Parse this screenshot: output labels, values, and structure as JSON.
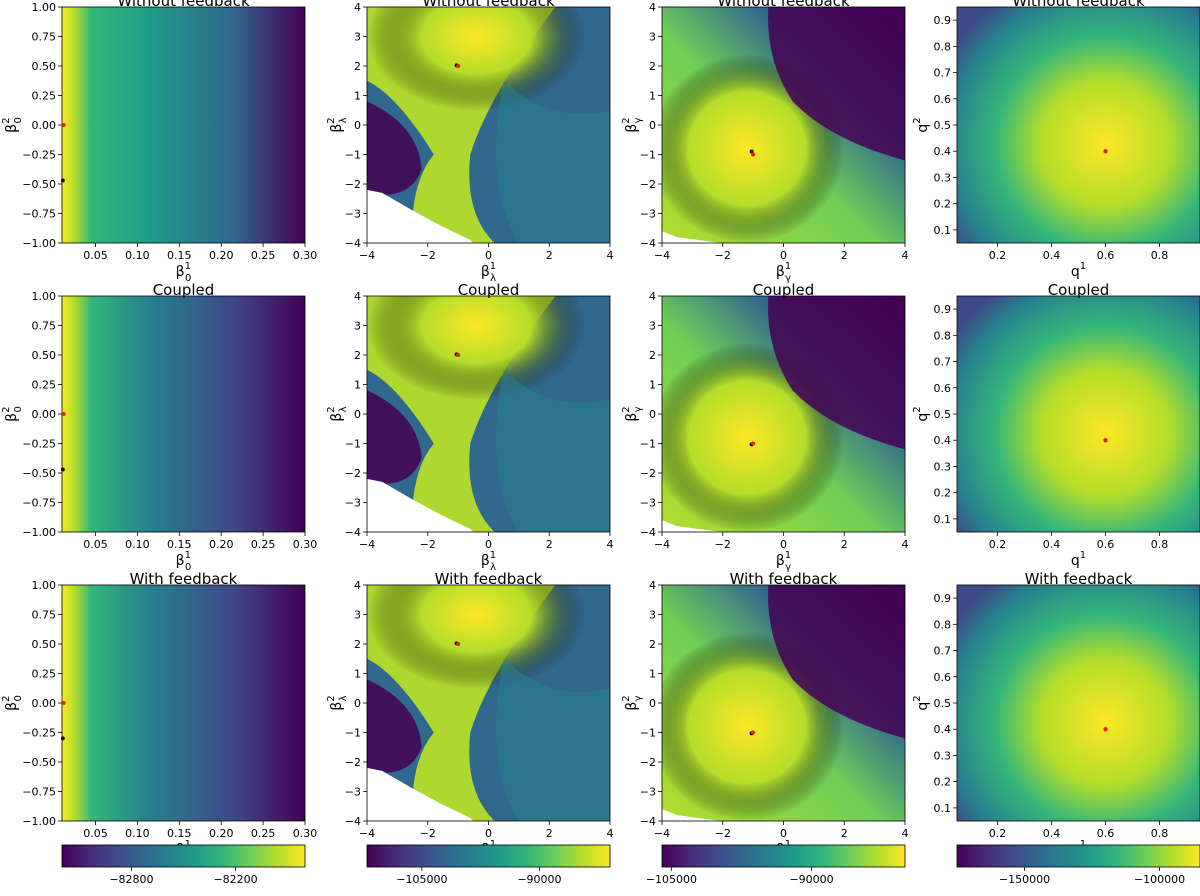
{
  "panel_titles": [
    [
      "Without feedback",
      "Without feedback",
      "Without feedback",
      "Without feedback"
    ],
    [
      "Coupled",
      "Coupled",
      "Coupled",
      "Coupled"
    ],
    [
      "With feedback",
      "With feedback",
      "With feedback",
      "With feedback"
    ]
  ],
  "axis_labels": [
    {
      "x_base": "β",
      "x_sub": "0",
      "x_sup": "1",
      "y_base": "β",
      "y_sub": "0",
      "y_sup": "2"
    },
    {
      "x_base": "β",
      "x_sub": "λ",
      "x_sup": "1",
      "y_base": "β",
      "y_sub": "λ",
      "y_sup": "2"
    },
    {
      "x_base": "β",
      "x_sub": "γ",
      "x_sup": "1",
      "y_base": "β",
      "y_sub": "γ",
      "y_sup": "2"
    },
    {
      "x_base": "q",
      "x_sub": "",
      "x_sup": "1",
      "y_base": "q",
      "y_sub": "",
      "y_sup": "2"
    }
  ],
  "columns": [
    {
      "xlim": [
        0.01,
        0.3
      ],
      "ylim": [
        -1.0,
        1.0
      ],
      "xticks": [
        0.05,
        0.1,
        0.15,
        0.2,
        0.25,
        0.3
      ],
      "xtick_labels": [
        "0.05",
        "0.10",
        "0.15",
        "0.20",
        "0.25",
        "0.30"
      ],
      "yticks": [
        -1.0,
        -0.75,
        -0.5,
        -0.25,
        0.0,
        0.25,
        0.5,
        0.75,
        1.0
      ],
      "ytick_labels": [
        "−1.00",
        "−0.75",
        "−0.50",
        "−0.25",
        "0.00",
        "0.25",
        "0.50",
        "0.75",
        "1.00"
      ],
      "colorbar": {
        "range": [
          -83200,
          -81800
        ],
        "ticks": [
          -82800,
          -82200
        ],
        "tick_labels": [
          "−82800",
          "−82200"
        ]
      }
    },
    {
      "xlim": [
        -4,
        4
      ],
      "ylim": [
        -4,
        4
      ],
      "xticks": [
        -4,
        -2,
        0,
        2,
        4
      ],
      "xtick_labels": [
        "−4",
        "−2",
        "0",
        "2",
        "4"
      ],
      "yticks": [
        -4,
        -3,
        -2,
        -1,
        0,
        1,
        2,
        3,
        4
      ],
      "ytick_labels": [
        "−4",
        "−3",
        "−2",
        "−1",
        "0",
        "1",
        "2",
        "3",
        "4"
      ],
      "colorbar": {
        "range": [
          -112000,
          -81000
        ],
        "ticks": [
          -105000,
          -90000
        ],
        "tick_labels": [
          "−105000",
          "−90000"
        ]
      }
    },
    {
      "xlim": [
        -4,
        4
      ],
      "ylim": [
        -4,
        4
      ],
      "xticks": [
        -4,
        -2,
        0,
        2,
        4
      ],
      "xtick_labels": [
        "−4",
        "−2",
        "0",
        "2",
        "4"
      ],
      "yticks": [
        -4,
        -3,
        -2,
        -1,
        0,
        1,
        2,
        3,
        4
      ],
      "ytick_labels": [
        "−4",
        "−3",
        "−2",
        "−1",
        "0",
        "1",
        "2",
        "3",
        "4"
      ],
      "colorbar": {
        "range": [
          -106000,
          -80000
        ],
        "ticks": [
          -105000,
          -90000
        ],
        "tick_labels": [
          "−105000",
          "−90000"
        ]
      }
    },
    {
      "xlim": [
        0.05,
        0.95
      ],
      "ylim": [
        0.05,
        0.95
      ],
      "xticks": [
        0.2,
        0.4,
        0.6,
        0.8
      ],
      "xtick_labels": [
        "0.2",
        "0.4",
        "0.6",
        "0.8"
      ],
      "yticks": [
        0.1,
        0.2,
        0.3,
        0.4,
        0.5,
        0.6,
        0.7,
        0.8,
        0.9
      ],
      "ytick_labels": [
        "0.1",
        "0.2",
        "0.3",
        "0.4",
        "0.5",
        "0.6",
        "0.7",
        "0.8",
        "0.9"
      ],
      "colorbar": {
        "range": [
          -175000,
          -85000
        ],
        "ticks": [
          -150000,
          -100000
        ],
        "tick_labels": [
          "−150000",
          "−100000"
        ]
      }
    }
  ],
  "colormap": "viridis",
  "chart_data": [
    {
      "type": "heatmap",
      "row": 0,
      "col": 0,
      "true_point": [
        0.012,
        0.0
      ],
      "estimate_point": [
        0.011,
        -0.47
      ]
    },
    {
      "type": "heatmap",
      "row": 0,
      "col": 1,
      "true_point": [
        -1.0,
        2.0
      ],
      "estimate_point": [
        -1.05,
        2.02
      ]
    },
    {
      "type": "heatmap",
      "row": 0,
      "col": 2,
      "true_point": [
        -1.0,
        -1.0
      ],
      "estimate_point": [
        -1.05,
        -0.9
      ]
    },
    {
      "type": "heatmap",
      "row": 0,
      "col": 3,
      "true_point": [
        0.6,
        0.4
      ],
      "estimate_point": [
        0.6,
        0.4
      ]
    },
    {
      "type": "heatmap",
      "row": 1,
      "col": 0,
      "true_point": [
        0.012,
        0.0
      ],
      "estimate_point": [
        0.011,
        -0.47
      ]
    },
    {
      "type": "heatmap",
      "row": 1,
      "col": 1,
      "true_point": [
        -1.0,
        2.0
      ],
      "estimate_point": [
        -1.05,
        2.02
      ]
    },
    {
      "type": "heatmap",
      "row": 1,
      "col": 2,
      "true_point": [
        -1.0,
        -1.0
      ],
      "estimate_point": [
        -1.05,
        -1.03
      ]
    },
    {
      "type": "heatmap",
      "row": 1,
      "col": 3,
      "true_point": [
        0.6,
        0.4
      ],
      "estimate_point": [
        0.6,
        0.4
      ]
    },
    {
      "type": "heatmap",
      "row": 2,
      "col": 0,
      "true_point": [
        0.012,
        0.0
      ],
      "estimate_point": [
        0.011,
        -0.3
      ]
    },
    {
      "type": "heatmap",
      "row": 2,
      "col": 1,
      "true_point": [
        -1.0,
        2.0
      ],
      "estimate_point": [
        -1.05,
        2.02
      ]
    },
    {
      "type": "heatmap",
      "row": 2,
      "col": 2,
      "true_point": [
        -1.0,
        -1.0
      ],
      "estimate_point": [
        -1.05,
        -1.03
      ]
    },
    {
      "type": "heatmap",
      "row": 2,
      "col": 3,
      "true_point": [
        0.6,
        0.4
      ],
      "estimate_point": [
        0.6,
        0.4
      ]
    }
  ]
}
